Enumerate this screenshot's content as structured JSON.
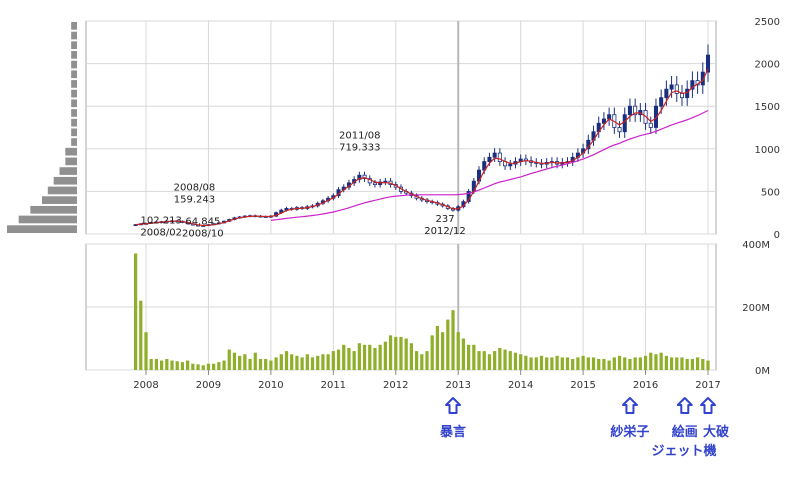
{
  "chart_data": [
    {
      "type": "candlestick",
      "title": "",
      "xlabel": "",
      "ylabel": "",
      "ylim": [
        0,
        2500
      ],
      "y_ticks": [
        "0",
        "500",
        "1000",
        "1500",
        "2000",
        "2500"
      ],
      "x_ticks": [
        "2008",
        "2009",
        "2010",
        "2011",
        "2012",
        "2013",
        "2014",
        "2015",
        "2016",
        "2017"
      ],
      "grid": true,
      "x": [
        "2007-11",
        "2007-12",
        "2008-01",
        "2008-02",
        "2008-03",
        "2008-04",
        "2008-05",
        "2008-06",
        "2008-07",
        "2008-08",
        "2008-09",
        "2008-10",
        "2008-11",
        "2008-12",
        "2009-01",
        "2009-02",
        "2009-03",
        "2009-04",
        "2009-05",
        "2009-06",
        "2009-07",
        "2009-08",
        "2009-09",
        "2009-10",
        "2009-11",
        "2009-12",
        "2010-01",
        "2010-02",
        "2010-03",
        "2010-04",
        "2010-05",
        "2010-06",
        "2010-07",
        "2010-08",
        "2010-09",
        "2010-10",
        "2010-11",
        "2010-12",
        "2011-01",
        "2011-02",
        "2011-03",
        "2011-04",
        "2011-05",
        "2011-06",
        "2011-07",
        "2011-08",
        "2011-09",
        "2011-10",
        "2011-11",
        "2011-12",
        "2012-01",
        "2012-02",
        "2012-03",
        "2012-04",
        "2012-05",
        "2012-06",
        "2012-07",
        "2012-08",
        "2012-09",
        "2012-10",
        "2012-11",
        "2012-12",
        "2013-01",
        "2013-02",
        "2013-03",
        "2013-04",
        "2013-05",
        "2013-06",
        "2013-07",
        "2013-08",
        "2013-09",
        "2013-10",
        "2013-11",
        "2013-12",
        "2014-01",
        "2014-02",
        "2014-03",
        "2014-04",
        "2014-05",
        "2014-06",
        "2014-07",
        "2014-08",
        "2014-09",
        "2014-10",
        "2014-11",
        "2014-12",
        "2015-01",
        "2015-02",
        "2015-03",
        "2015-04",
        "2015-05",
        "2015-06",
        "2015-07",
        "2015-08",
        "2015-09",
        "2015-10",
        "2015-11",
        "2015-12",
        "2016-01",
        "2016-02",
        "2016-03",
        "2016-04",
        "2016-05",
        "2016-06",
        "2016-07",
        "2016-08",
        "2016-09",
        "2016-10",
        "2016-11",
        "2016-12",
        "2017-01"
      ],
      "close": [
        110,
        120,
        125,
        135,
        140,
        145,
        150,
        155,
        150,
        135,
        120,
        105,
        95,
        100,
        110,
        120,
        130,
        150,
        170,
        190,
        200,
        210,
        215,
        210,
        205,
        200,
        210,
        250,
        280,
        300,
        290,
        310,
        300,
        320,
        330,
        360,
        390,
        420,
        450,
        520,
        550,
        600,
        640,
        690,
        650,
        600,
        580,
        610,
        620,
        580,
        550,
        500,
        480,
        450,
        420,
        400,
        380,
        370,
        350,
        330,
        300,
        280,
        320,
        380,
        500,
        620,
        750,
        850,
        900,
        950,
        850,
        800,
        820,
        850,
        880,
        860,
        840,
        830,
        820,
        840,
        850,
        820,
        840,
        850,
        900,
        950,
        1000,
        1100,
        1200,
        1300,
        1350,
        1400,
        1250,
        1200,
        1400,
        1500,
        1400,
        1450,
        1300,
        1250,
        1500,
        1600,
        1700,
        1750,
        1650,
        1600,
        1700,
        1800,
        1750,
        1900,
        2100
      ],
      "ma_short": [
        110,
        115,
        120,
        128,
        135,
        140,
        146,
        150,
        150,
        145,
        135,
        120,
        108,
        100,
        102,
        110,
        120,
        135,
        155,
        175,
        190,
        200,
        208,
        210,
        208,
        205,
        205,
        220,
        245,
        275,
        290,
        300,
        300,
        310,
        320,
        340,
        365,
        395,
        425,
        470,
        520,
        560,
        610,
        650,
        660,
        640,
        610,
        600,
        605,
        595,
        570,
        530,
        500,
        470,
        440,
        415,
        395,
        380,
        365,
        345,
        320,
        295,
        295,
        330,
        400,
        500,
        620,
        740,
        830,
        890,
        880,
        850,
        830,
        830,
        850,
        860,
        855,
        840,
        830,
        830,
        840,
        835,
        835,
        840,
        860,
        900,
        950,
        1020,
        1100,
        1200,
        1280,
        1350,
        1320,
        1280,
        1320,
        1380,
        1420,
        1420,
        1380,
        1320,
        1360,
        1450,
        1560,
        1660,
        1680,
        1650,
        1660,
        1720,
        1760,
        1800,
        1940
      ],
      "ma_long": [
        null,
        null,
        null,
        null,
        null,
        null,
        null,
        null,
        null,
        null,
        null,
        null,
        null,
        null,
        null,
        null,
        null,
        null,
        null,
        null,
        null,
        null,
        null,
        null,
        null,
        null,
        160,
        168,
        175,
        183,
        190,
        197,
        203,
        210,
        217,
        225,
        235,
        246,
        258,
        273,
        290,
        308,
        328,
        348,
        366,
        382,
        395,
        410,
        425,
        437,
        445,
        450,
        455,
        460,
        460,
        460,
        460,
        460,
        460,
        460,
        460,
        460,
        462,
        468,
        478,
        494,
        515,
        540,
        565,
        590,
        610,
        625,
        640,
        655,
        670,
        690,
        710,
        727,
        745,
        762,
        780,
        795,
        810,
        825,
        840,
        860,
        880,
        905,
        930,
        960,
        990,
        1020,
        1045,
        1065,
        1090,
        1115,
        1135,
        1155,
        1170,
        1185,
        1205,
        1230,
        1255,
        1280,
        1300,
        1320,
        1340,
        1365,
        1390,
        1420,
        1450
      ],
      "series": [],
      "annotations": [
        {
          "x": "2008-08",
          "y": 159.243,
          "label_date": "2008/08",
          "label_value": "159.243"
        },
        {
          "x": "2008-02",
          "y": 102.213,
          "label_date": "2008/02",
          "label_value": "102.213"
        },
        {
          "x": "2008-10",
          "y": 64.845,
          "label_date": "2008/10",
          "label_value": "64.845"
        },
        {
          "x": "2011-08",
          "y": 719.333,
          "label_date": "2011/08",
          "label_value": "719.333"
        },
        {
          "x": "2012-12",
          "y": 237,
          "label_date": "2012/12",
          "label_value": "237"
        }
      ],
      "volume_profile": [
        12,
        10,
        8,
        6,
        5,
        4,
        3,
        2,
        2,
        1,
        1,
        1,
        1,
        1,
        1,
        1,
        1,
        1,
        1,
        1,
        1,
        1
      ]
    },
    {
      "type": "bar",
      "title": "",
      "ylim": [
        0,
        400
      ],
      "y_ticks": [
        "0M",
        "200M",
        "400M"
      ],
      "x_ticks": [
        "2008",
        "2009",
        "2010",
        "2011",
        "2012",
        "2013",
        "2014",
        "2015",
        "2016",
        "2017"
      ],
      "categories": [
        "2007-11",
        "2007-12",
        "2008-01",
        "2008-02",
        "2008-03",
        "2008-04",
        "2008-05",
        "2008-06",
        "2008-07",
        "2008-08",
        "2008-09",
        "2008-10",
        "2008-11",
        "2008-12",
        "2009-01",
        "2009-02",
        "2009-03",
        "2009-04",
        "2009-05",
        "2009-06",
        "2009-07",
        "2009-08",
        "2009-09",
        "2009-10",
        "2009-11",
        "2009-12",
        "2010-01",
        "2010-02",
        "2010-03",
        "2010-04",
        "2010-05",
        "2010-06",
        "2010-07",
        "2010-08",
        "2010-09",
        "2010-10",
        "2010-11",
        "2010-12",
        "2011-01",
        "2011-02",
        "2011-03",
        "2011-04",
        "2011-05",
        "2011-06",
        "2011-07",
        "2011-08",
        "2011-09",
        "2011-10",
        "2011-11",
        "2011-12",
        "2012-01",
        "2012-02",
        "2012-03",
        "2012-04",
        "2012-05",
        "2012-06",
        "2012-07",
        "2012-08",
        "2012-09",
        "2012-10",
        "2012-11",
        "2012-12",
        "2013-01",
        "2013-02",
        "2013-03",
        "2013-04",
        "2013-05",
        "2013-06",
        "2013-07",
        "2013-08",
        "2013-09",
        "2013-10",
        "2013-11",
        "2013-12",
        "2014-01",
        "2014-02",
        "2014-03",
        "2014-04",
        "2014-05",
        "2014-06",
        "2014-07",
        "2014-08",
        "2014-09",
        "2014-10",
        "2014-11",
        "2014-12",
        "2015-01",
        "2015-02",
        "2015-03",
        "2015-04",
        "2015-05",
        "2015-06",
        "2015-07",
        "2015-08",
        "2015-09",
        "2015-10",
        "2015-11",
        "2015-12",
        "2016-01",
        "2016-02",
        "2016-03",
        "2016-04",
        "2016-05",
        "2016-06",
        "2016-07",
        "2016-08",
        "2016-09",
        "2016-10",
        "2016-11",
        "2016-12",
        "2017-01"
      ],
      "values": [
        370,
        220,
        120,
        35,
        35,
        30,
        35,
        30,
        28,
        25,
        30,
        20,
        18,
        15,
        20,
        20,
        25,
        30,
        65,
        55,
        45,
        50,
        35,
        55,
        35,
        35,
        30,
        40,
        50,
        60,
        50,
        45,
        40,
        50,
        40,
        45,
        50,
        50,
        60,
        65,
        80,
        70,
        60,
        85,
        80,
        80,
        70,
        80,
        90,
        110,
        105,
        105,
        100,
        85,
        60,
        50,
        60,
        110,
        140,
        120,
        160,
        190,
        120,
        100,
        80,
        80,
        60,
        60,
        50,
        60,
        70,
        65,
        60,
        55,
        50,
        45,
        40,
        40,
        45,
        40,
        40,
        45,
        40,
        40,
        35,
        40,
        45,
        40,
        40,
        35,
        35,
        30,
        40,
        45,
        40,
        35,
        40,
        40,
        45,
        55,
        50,
        55,
        45,
        40,
        40,
        40,
        35,
        35,
        40,
        35,
        30
      ],
      "series": []
    }
  ],
  "events": [
    {
      "label": "暴言",
      "x": "2012-12"
    },
    {
      "label": "紗栄子",
      "x": "2015-10"
    },
    {
      "label": "絵画",
      "x": "2016-07"
    },
    {
      "label": "ジェット機",
      "x": "2016-08"
    },
    {
      "label": "大破",
      "x": "2017-01"
    }
  ],
  "colors": {
    "candle_up": "#1a2f80",
    "candle_down": "#ffffff",
    "candle_outline": "#1a2f80",
    "ma_short": "#cc2222",
    "ma_long": "#cc22cc",
    "volume_bar": "#8faf2a",
    "volume_profile": "#909090",
    "grid": "#d8d8d8",
    "frame": "#aaaaaa",
    "event_text": "#3344cc",
    "event_arrow": "#3344cc"
  }
}
